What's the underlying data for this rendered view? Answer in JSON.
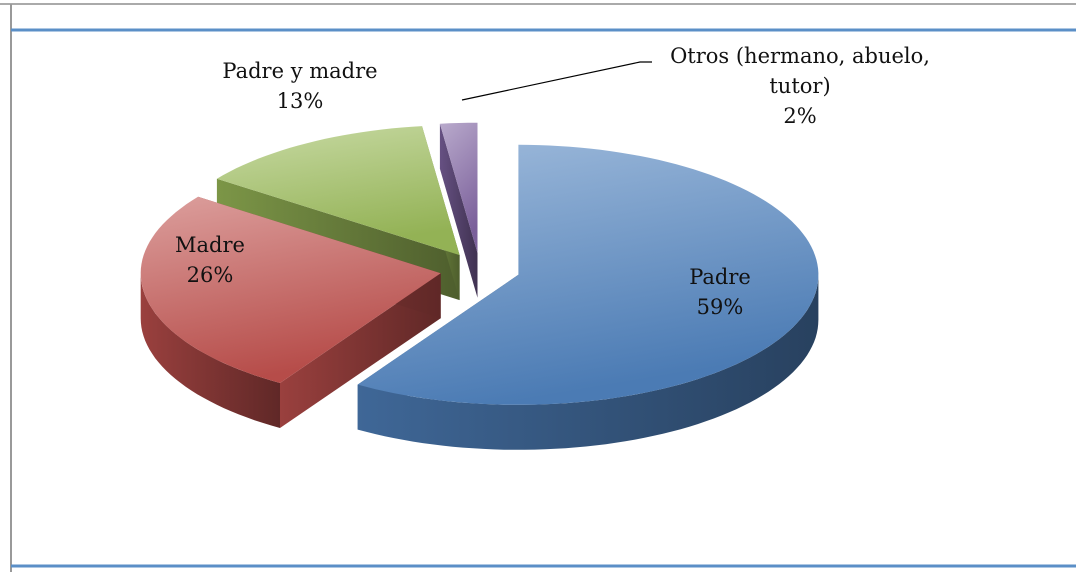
{
  "chart_data": {
    "type": "pie",
    "categories": [
      "Padre",
      "Madre",
      "Padre y madre",
      "Otros (hermano, abuelo, tutor)"
    ],
    "values": [
      59,
      26,
      13,
      2
    ],
    "value_labels": [
      "59%",
      "26%",
      "13%",
      "2%"
    ],
    "colors": [
      "#4f81bd",
      "#c0504d",
      "#9bbb59",
      "#8064a2"
    ]
  }
}
